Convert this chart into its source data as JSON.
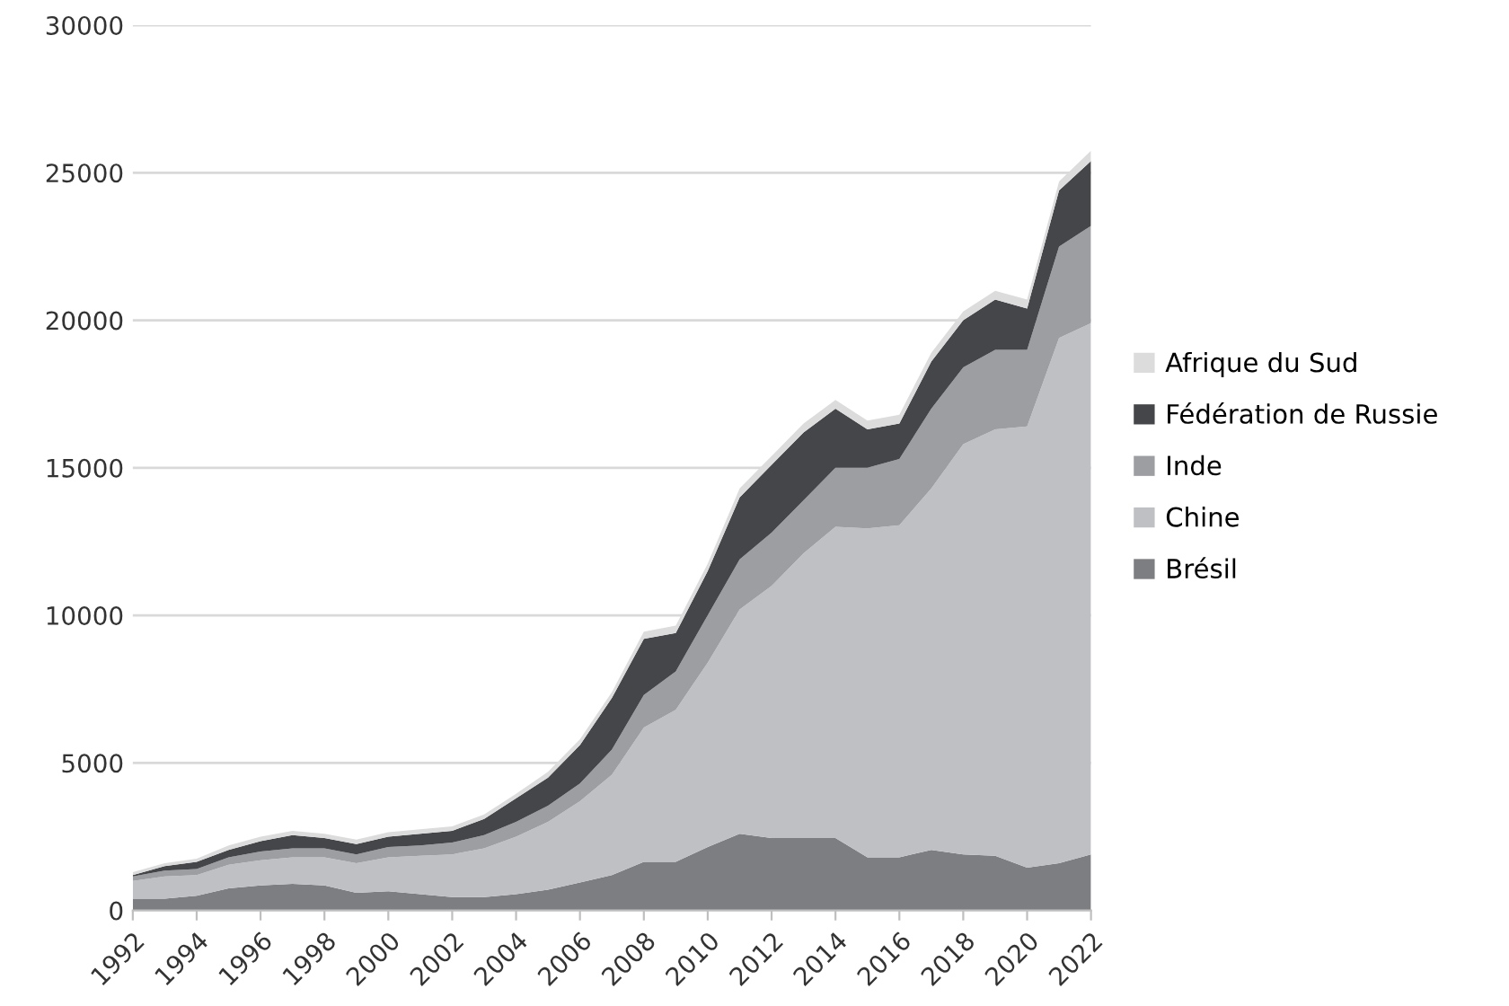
{
  "chart_data": {
    "type": "area",
    "stacked": true,
    "x": [
      1992,
      1993,
      1994,
      1995,
      1996,
      1997,
      1998,
      1999,
      2000,
      2001,
      2002,
      2003,
      2004,
      2005,
      2006,
      2007,
      2008,
      2009,
      2010,
      2011,
      2012,
      2013,
      2014,
      2015,
      2016,
      2017,
      2018,
      2019,
      2020,
      2021,
      2022
    ],
    "series": [
      {
        "name": "Brésil",
        "color": "#7d7e82",
        "values": [
          400,
          400,
          500,
          750,
          850,
          900,
          850,
          600,
          650,
          550,
          450,
          450,
          550,
          700,
          950,
          1200,
          1650,
          1650,
          2150,
          2600,
          2450,
          2450,
          2450,
          1800,
          1800,
          2050,
          1900,
          1850,
          1450,
          1600,
          1900
        ]
      },
      {
        "name": "Chine",
        "color": "#bfc0c4",
        "values": [
          600,
          750,
          700,
          800,
          850,
          900,
          950,
          1000,
          1150,
          1300,
          1450,
          1650,
          1950,
          2300,
          2750,
          3400,
          4550,
          5150,
          6250,
          7600,
          8550,
          9650,
          10550,
          11150,
          11250,
          12250,
          13900,
          14450,
          14950,
          17800,
          18000
        ]
      },
      {
        "name": "Inde",
        "color": "#9d9ea2",
        "values": [
          150,
          200,
          200,
          250,
          300,
          300,
          300,
          300,
          350,
          350,
          400,
          450,
          500,
          550,
          600,
          850,
          1100,
          1300,
          1600,
          1700,
          1800,
          1800,
          2000,
          2050,
          2250,
          2700,
          2600,
          2700,
          2600,
          3100,
          3300
        ]
      },
      {
        "name": "Fédération de Russie",
        "color": "#454649",
        "values": [
          50,
          150,
          250,
          250,
          350,
          450,
          350,
          350,
          350,
          400,
          400,
          550,
          800,
          950,
          1300,
          1750,
          1900,
          1300,
          1500,
          2100,
          2300,
          2300,
          2000,
          1300,
          1200,
          1600,
          1600,
          1700,
          1400,
          1900,
          2200
        ]
      },
      {
        "name": "Afrique du Sud",
        "color": "#dcdcdc",
        "values": [
          100,
          100,
          100,
          150,
          150,
          150,
          150,
          150,
          150,
          150,
          150,
          150,
          150,
          200,
          200,
          200,
          250,
          250,
          250,
          300,
          300,
          300,
          300,
          300,
          300,
          300,
          300,
          300,
          300,
          300,
          350
        ]
      }
    ],
    "xlim": [
      1992,
      2022
    ],
    "xticks": [
      1992,
      1994,
      1996,
      1998,
      2000,
      2002,
      2004,
      2006,
      2008,
      2010,
      2012,
      2014,
      2016,
      2018,
      2020,
      2022
    ],
    "ylim": [
      0,
      30000
    ],
    "yticks": [
      0,
      5000,
      10000,
      15000,
      20000,
      25000,
      30000
    ],
    "grid": "y",
    "legend": "right"
  }
}
